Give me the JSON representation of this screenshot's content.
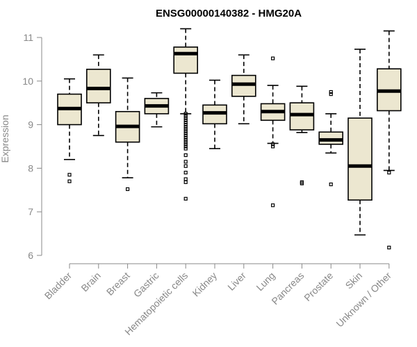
{
  "chart_data": {
    "type": "boxplot",
    "title": "ENSG00000140382 - HMG20A",
    "xlabel": "",
    "ylabel": "Expression",
    "ylim": [
      6,
      11.1
    ],
    "yticks": [
      6,
      7,
      8,
      9,
      10,
      11
    ],
    "box_fill": "#ece7d0",
    "categories": [
      "Bladder",
      "Brain",
      "Breast",
      "Gastric",
      "Hematopoietic cells",
      "Kidney",
      "Liver",
      "Lung",
      "Pancreas",
      "Prostate",
      "Skin",
      "Unknown / Other"
    ],
    "series": [
      {
        "name": "Bladder",
        "whisker_low": 8.2,
        "q1": 9.0,
        "median": 9.37,
        "q3": 9.7,
        "whisker_high": 10.05,
        "outliers": [
          7.85,
          7.7
        ]
      },
      {
        "name": "Brain",
        "whisker_low": 8.75,
        "q1": 9.5,
        "median": 9.83,
        "q3": 10.27,
        "whisker_high": 10.6,
        "outliers": []
      },
      {
        "name": "Breast",
        "whisker_low": 7.78,
        "q1": 8.6,
        "median": 8.96,
        "q3": 9.3,
        "whisker_high": 10.07,
        "outliers": [
          7.52
        ]
      },
      {
        "name": "Gastric",
        "whisker_low": 8.95,
        "q1": 9.25,
        "median": 9.43,
        "q3": 9.6,
        "whisker_high": 9.73,
        "outliers": []
      },
      {
        "name": "Hematopoietic cells",
        "whisker_low": 9.25,
        "q1": 10.18,
        "median": 10.63,
        "q3": 10.78,
        "whisker_high": 11.2,
        "outliers": [
          9.25,
          9.2,
          9.15,
          9.1,
          9.05,
          9.0,
          8.95,
          8.9,
          8.85,
          8.8,
          8.75,
          8.7,
          8.65,
          8.6,
          8.55,
          8.5,
          8.45,
          8.3,
          8.15,
          8.05,
          7.9,
          7.75,
          7.68,
          7.3
        ]
      },
      {
        "name": "Kidney",
        "whisker_low": 8.45,
        "q1": 9.02,
        "median": 9.27,
        "q3": 9.45,
        "whisker_high": 10.02,
        "outliers": []
      },
      {
        "name": "Liver",
        "whisker_low": 9.02,
        "q1": 9.65,
        "median": 9.93,
        "q3": 10.13,
        "whisker_high": 10.6,
        "outliers": []
      },
      {
        "name": "Lung",
        "whisker_low": 8.57,
        "q1": 9.1,
        "median": 9.3,
        "q3": 9.48,
        "whisker_high": 9.9,
        "outliers": [
          8.55,
          8.5,
          10.52,
          7.15
        ]
      },
      {
        "name": "Pancreas",
        "whisker_low": 8.82,
        "q1": 8.88,
        "median": 9.23,
        "q3": 9.5,
        "whisker_high": 9.88,
        "outliers": [
          7.68,
          7.65
        ]
      },
      {
        "name": "Prostate",
        "whisker_low": 8.35,
        "q1": 8.55,
        "median": 8.65,
        "q3": 8.83,
        "whisker_high": 9.25,
        "outliers": [
          9.75,
          9.7,
          7.63
        ]
      },
      {
        "name": "Skin",
        "whisker_low": 6.47,
        "q1": 7.27,
        "median": 8.05,
        "q3": 9.15,
        "whisker_high": 10.73,
        "outliers": []
      },
      {
        "name": "Unknown / Other",
        "whisker_low": 7.95,
        "q1": 9.32,
        "median": 9.77,
        "q3": 10.28,
        "whisker_high": 11.15,
        "outliers": [
          7.9,
          6.18
        ]
      }
    ]
  }
}
